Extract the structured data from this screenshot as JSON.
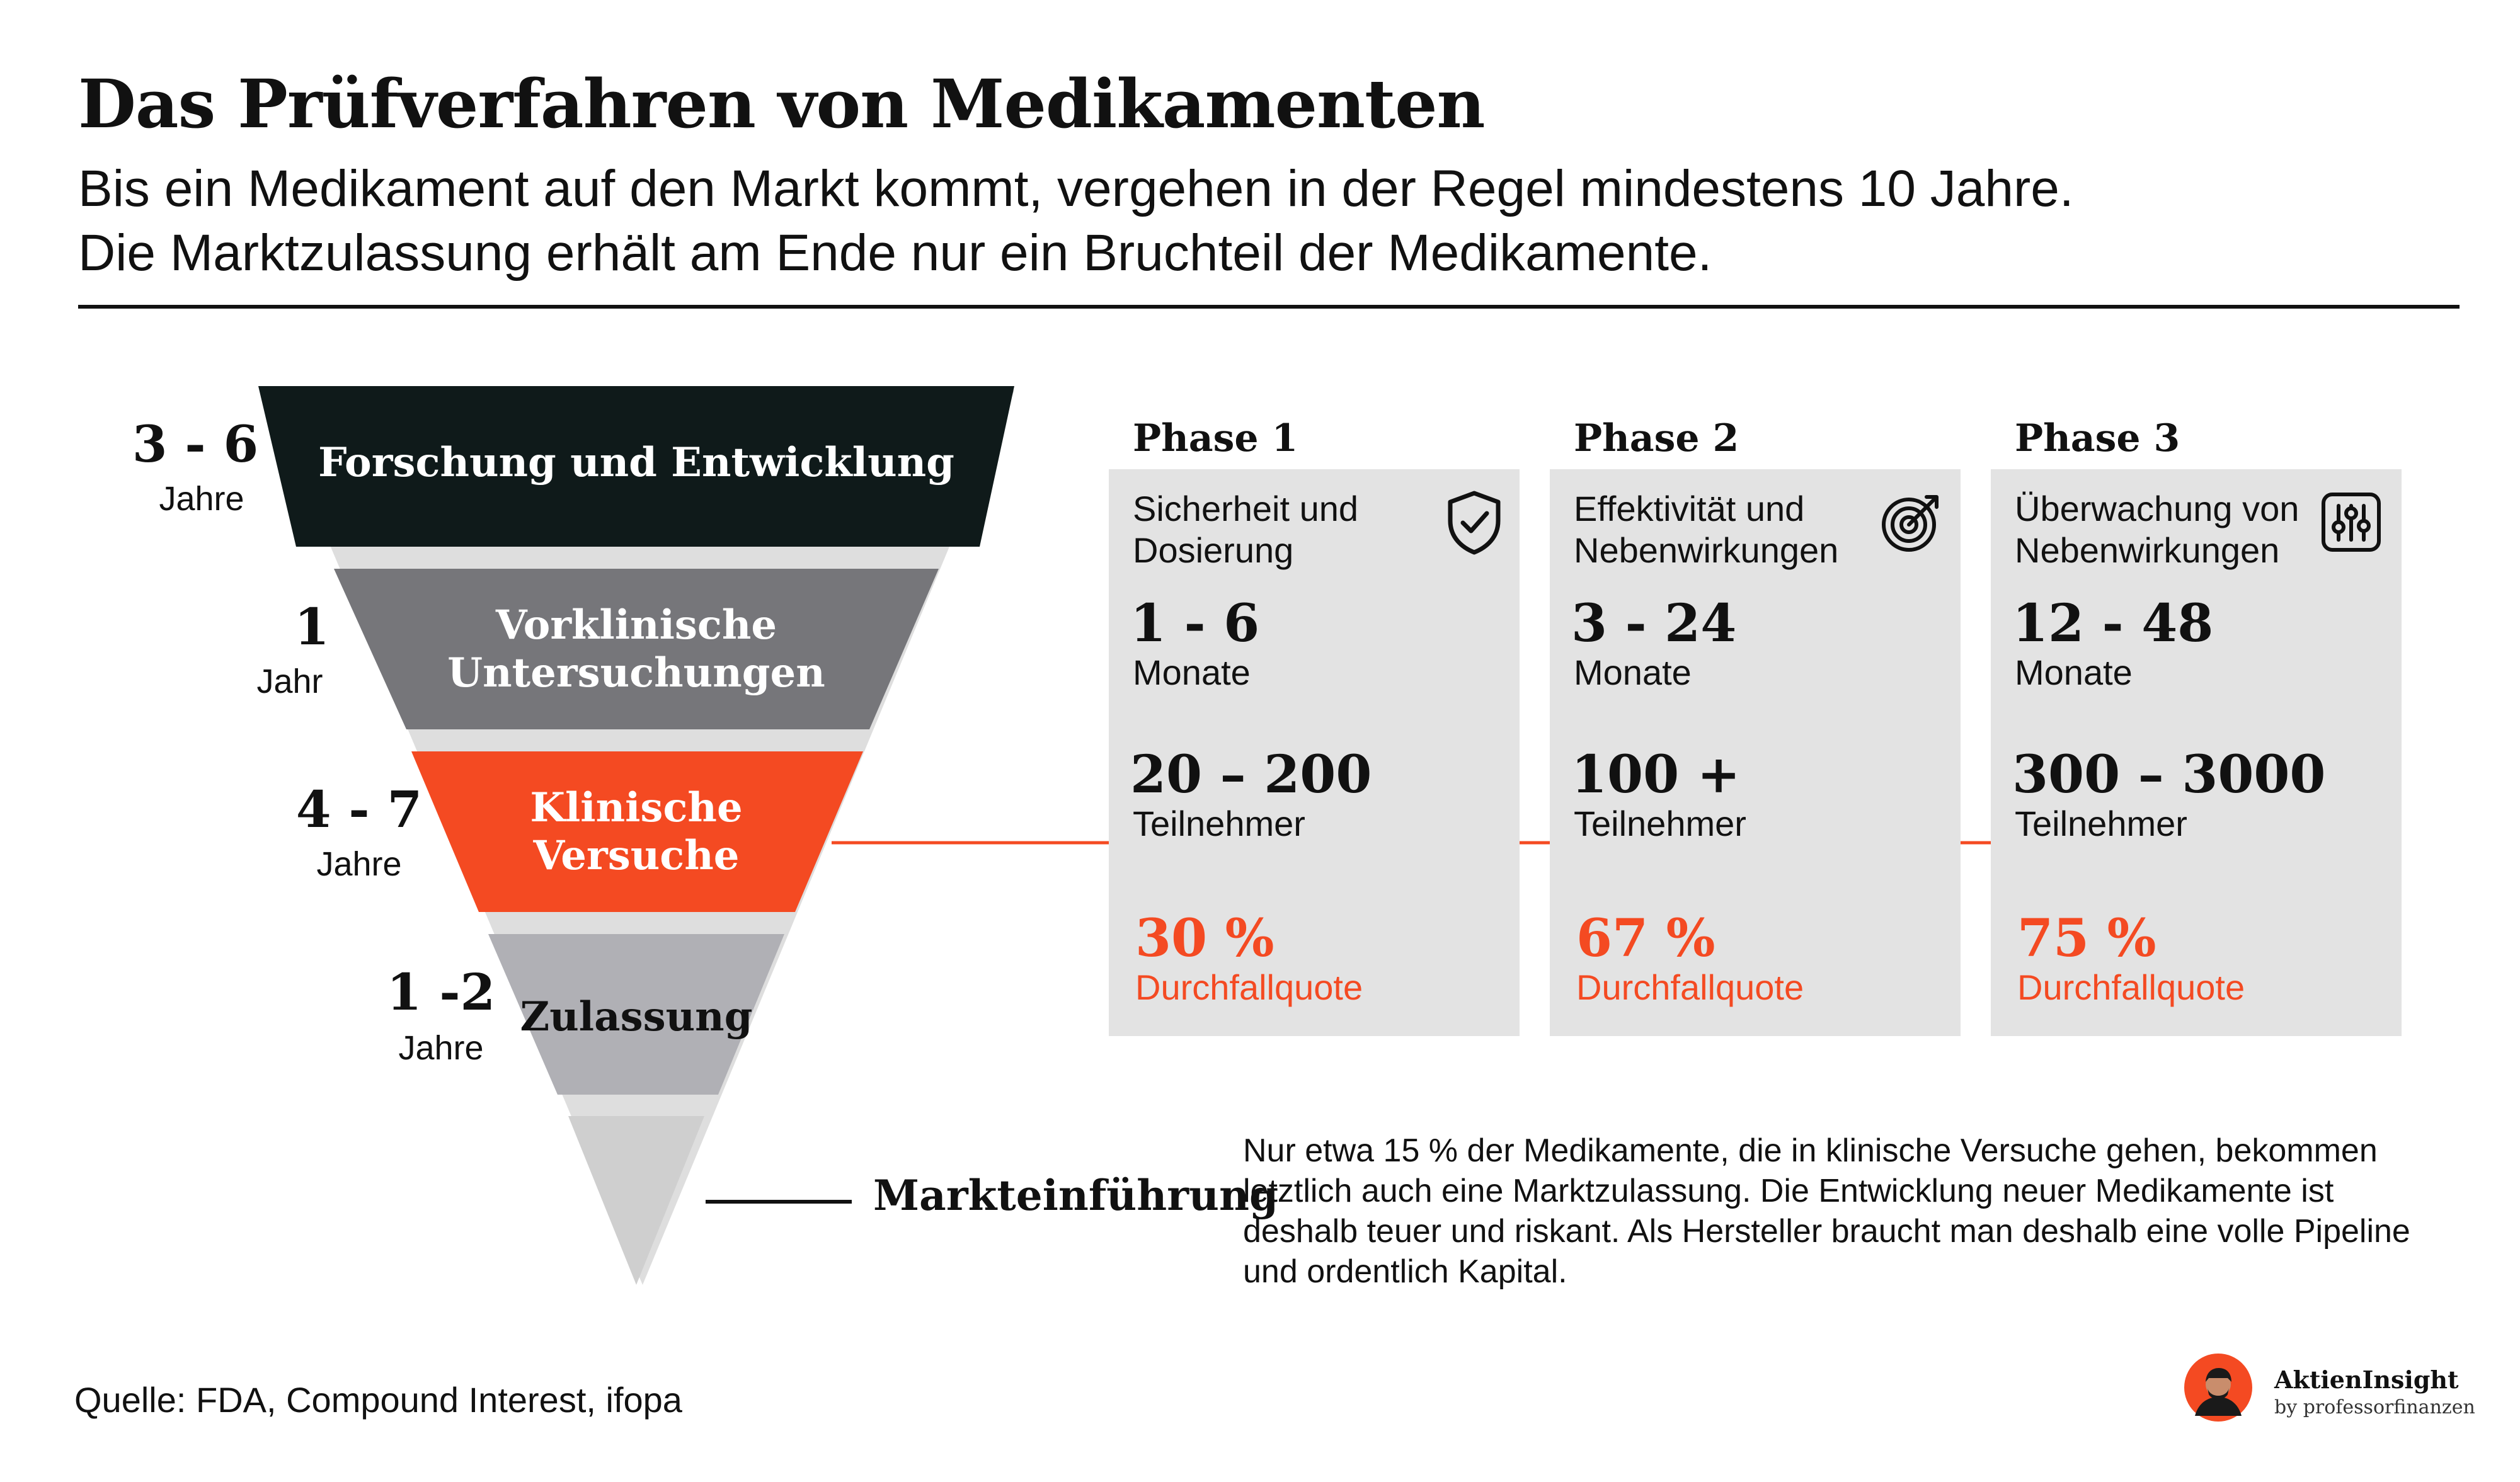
{
  "header": {
    "title": "Das Prüfverfahren von Medikamenten",
    "subtitle_line1": "Bis ein Medikament auf den Markt kommt, vergehen in der Regel mindestens 10 Jahre.",
    "subtitle_line2": "Die Marktzulassung erhält am Ende nur ein Bruchteil der Medikamente."
  },
  "funnel": {
    "stages": [
      {
        "label_lines": [
          "Forschung und Entwicklung"
        ],
        "duration": "3 - 6",
        "unit": "Jahre",
        "color": "#0f1a1a"
      },
      {
        "label_lines": [
          "Vorklinische",
          "Untersuchungen"
        ],
        "duration": "1",
        "unit": "Jahr",
        "color": "#76767a"
      },
      {
        "label_lines": [
          "Klinische",
          "Versuche"
        ],
        "duration": "4 - 7",
        "unit": "Jahre",
        "color": "#f44a22"
      },
      {
        "label_lines": [
          "Zulassung"
        ],
        "duration": "1 -2",
        "unit": "Jahre",
        "color": "#b0b0b5"
      }
    ],
    "end_label": "Markteinführung"
  },
  "phases": [
    {
      "heading": "Phase 1",
      "title_lines": [
        "Sicherheit und",
        "Dosierung"
      ],
      "icon": "shield-check-icon",
      "duration": "1 - 6",
      "duration_unit": "Monate",
      "participants": "20 – 200",
      "participants_label": "Teilnehmer",
      "failure_rate": "30 %",
      "failure_label": "Durchfallquote"
    },
    {
      "heading": "Phase 2",
      "title_lines": [
        "Effektivität und",
        "Nebenwirkungen"
      ],
      "icon": "target-icon",
      "duration": "3 - 24",
      "duration_unit": "Monate",
      "participants": "100 +",
      "participants_label": "Teilnehmer",
      "failure_rate": "67 %",
      "failure_label": "Durchfallquote"
    },
    {
      "heading": "Phase 3",
      "title_lines": [
        "Überwachung von",
        "Nebenwirkungen"
      ],
      "icon": "sliders-icon",
      "duration": "12 - 48",
      "duration_unit": "Monate",
      "participants": "300 – 3000",
      "participants_label": "Teilnehmer",
      "failure_rate": "75 %",
      "failure_label": "Durchfallquote"
    }
  ],
  "note": "Nur etwa 15 % der Medikamente, die in klinische Versuche gehen, bekommen letztlich auch eine Marktzulassung. Die Entwicklung neuer Medikamente ist deshalb teuer und riskant. Als Hersteller braucht man deshalb eine volle Pipeline und ordentlich Kapital.",
  "source": "Quelle: FDA, Compound Interest, ifopa",
  "brand": {
    "name": "AktienInsight",
    "by": "by professorfinanzen"
  },
  "colors": {
    "accent": "#f44a22",
    "card": "#e3e3e3",
    "dark": "#0f1a1a"
  }
}
